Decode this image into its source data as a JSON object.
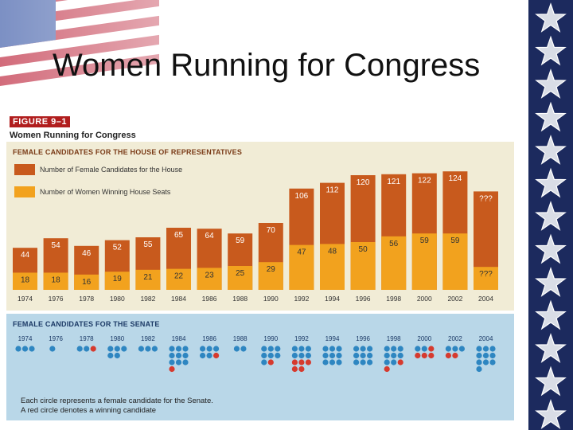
{
  "slide": {
    "title": "Women Running for Congress"
  },
  "figure": {
    "label": "FIGURE 9–1",
    "title": "Women Running for Congress"
  },
  "colors": {
    "candidates_bar": "#c85a1d",
    "winners_bar": "#f2a21e",
    "house_panel": "#f1ecd6",
    "senate_panel": "#b9d7e8",
    "senate_candidate": "#2e86c1",
    "senate_winner": "#d63a2e",
    "slide_star_bar": "#1c2a5e"
  },
  "house": {
    "heading": "FEMALE CANDIDATES FOR THE HOUSE OF REPRESENTATIVES",
    "legend": [
      {
        "label": "Number of Female Candidates for the House",
        "color_key": "candidates_bar"
      },
      {
        "label": "Number of Women Winning House Seats",
        "color_key": "winners_bar"
      }
    ]
  },
  "senate": {
    "heading": "FEMALE CANDIDATES FOR THE SENATE",
    "note_line1": "Each circle represents a female candidate for the Senate.",
    "note_line2": "A red circle denotes a winning candidate"
  },
  "chart_data": [
    {
      "type": "bar",
      "title": "FEMALE CANDIDATES FOR THE HOUSE OF REPRESENTATIVES",
      "categories": [
        "1974",
        "1976",
        "1978",
        "1980",
        "1982",
        "1984",
        "1986",
        "1988",
        "1990",
        "1992",
        "1994",
        "1996",
        "1998",
        "2000",
        "2002",
        "2004"
      ],
      "series": [
        {
          "name": "Number of Female Candidates for the House",
          "values": [
            44,
            54,
            46,
            52,
            55,
            65,
            64,
            59,
            70,
            106,
            112,
            120,
            121,
            122,
            124,
            null
          ],
          "labels": [
            "44",
            "54",
            "46",
            "52",
            "55",
            "65",
            "64",
            "59",
            "70",
            "106",
            "112",
            "120",
            "121",
            "122",
            "124",
            "???"
          ]
        },
        {
          "name": "Number of Women Winning House Seats",
          "values": [
            18,
            18,
            16,
            19,
            21,
            22,
            23,
            25,
            29,
            47,
            48,
            50,
            56,
            59,
            59,
            null
          ],
          "labels": [
            "18",
            "18",
            "16",
            "19",
            "21",
            "22",
            "23",
            "25",
            "29",
            "47",
            "48",
            "50",
            "56",
            "59",
            "59",
            "???"
          ]
        }
      ],
      "ylim": [
        0,
        150
      ],
      "xlabel": "",
      "ylabel": ""
    },
    {
      "type": "table",
      "title": "FEMALE CANDIDATES FOR THE SENATE",
      "categories": [
        "1974",
        "1976",
        "1978",
        "1980",
        "1982",
        "1984",
        "1986",
        "1988",
        "1990",
        "1992",
        "1994",
        "1996",
        "1998",
        "2000",
        "2002",
        "2004"
      ],
      "series": [
        {
          "name": "Candidates",
          "values": [
            3,
            1,
            3,
            5,
            3,
            10,
            6,
            2,
            8,
            11,
            9,
            9,
            10,
            6,
            5,
            10
          ]
        },
        {
          "name": "Winners",
          "values": [
            0,
            0,
            1,
            0,
            0,
            1,
            1,
            0,
            1,
            5,
            0,
            0,
            2,
            4,
            2,
            null
          ]
        }
      ]
    }
  ]
}
